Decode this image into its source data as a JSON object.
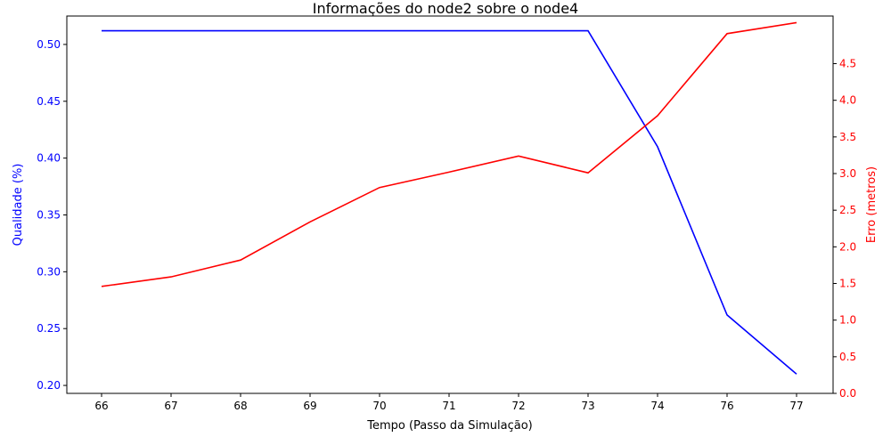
{
  "chart_data": {
    "type": "line",
    "title": "Informações do node2 sobre o node4",
    "xlabel": "Tempo (Passo da Simulação)",
    "categories": [
      "66",
      "67",
      "68",
      "69",
      "70",
      "71",
      "72",
      "73",
      "74",
      "76",
      "77"
    ],
    "y_left": {
      "label": "Qualidade (%)",
      "color": "#0000ff",
      "range": [
        0.193,
        0.525
      ],
      "ticks": [
        "0.20",
        "0.25",
        "0.30",
        "0.35",
        "0.40",
        "0.45",
        "0.50"
      ]
    },
    "y_right": {
      "label": "Erro (metros)",
      "color": "#ff0000",
      "range": [
        0.0,
        5.15
      ],
      "ticks": [
        "0.0",
        "0.5",
        "1.0",
        "1.5",
        "2.0",
        "2.5",
        "3.0",
        "3.5",
        "4.0",
        "4.5"
      ]
    },
    "series": [
      {
        "axis": "left",
        "color": "#0000ff",
        "values": [
          0.512,
          0.512,
          0.512,
          0.512,
          0.512,
          0.512,
          0.512,
          0.512,
          0.41,
          0.262,
          0.21
        ]
      },
      {
        "axis": "right",
        "color": "#ff0000",
        "values": [
          1.46,
          1.59,
          1.82,
          2.34,
          2.81,
          3.02,
          3.24,
          3.01,
          3.79,
          4.91,
          5.06
        ]
      }
    ],
    "grid": false,
    "legend": "none"
  }
}
